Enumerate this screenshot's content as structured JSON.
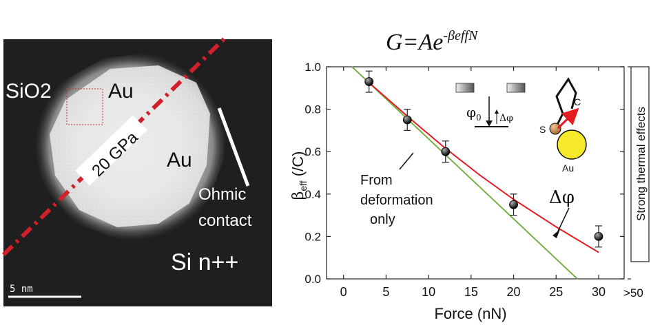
{
  "micrograph": {
    "labels": {
      "sio2": "SiO",
      "sio2_sub": "2",
      "au_top": "Au",
      "au_right": "Au",
      "pressure": "20 GPa",
      "ohmic_1": "Ohmic",
      "ohmic_2": "contact",
      "si": "Si n++"
    },
    "scale_bar_label": "5  nm",
    "colors": {
      "dash_line": "#d2202a",
      "background": "#1e1e1e",
      "box": "#c0392b"
    }
  },
  "formula": {
    "lhs": "G=Ae",
    "exponent": "-βeffN"
  },
  "chart_data": {
    "type": "scatter",
    "xlabel": "Force (nN)",
    "ylabel_main": "β",
    "ylabel_sub": "eff",
    "ylabel_unit": " (/C)",
    "xlim": [
      -2,
      33
    ],
    "ylim": [
      0,
      1.0
    ],
    "xticks": [
      0,
      5,
      10,
      15,
      20,
      25,
      30
    ],
    "yticks": [
      0.0,
      0.2,
      0.4,
      0.6,
      0.8,
      1.0
    ],
    "ytick_labels": [
      "0.0",
      "0.2",
      "0.4",
      "0.6",
      "0.8",
      "1.0"
    ],
    "points": [
      {
        "x": 3,
        "y": 0.93,
        "err": 0.05
      },
      {
        "x": 7.5,
        "y": 0.75,
        "err": 0.05
      },
      {
        "x": 12,
        "y": 0.6,
        "err": 0.05
      },
      {
        "x": 20,
        "y": 0.35,
        "err": 0.05
      },
      {
        "x": 30,
        "y": 0.2,
        "err": 0.05
      }
    ],
    "lines": [
      {
        "x": [
          1,
          27.5
        ],
        "y": [
          1.0,
          0.0
        ],
        "color": "#77b043"
      },
      {
        "x": [
          3,
          8,
          12,
          16,
          20,
          25,
          30
        ],
        "y": [
          0.925,
          0.75,
          0.615,
          0.49,
          0.375,
          0.245,
          0.125
        ],
        "color": "#e41d22"
      }
    ],
    "annotations": {
      "deformation_1": "From",
      "deformation_2": "deformation",
      "deformation_3": "only",
      "delta_phi": "Δφ",
      "phi0": "φ",
      "phi0_sub": "0",
      "inset_delta_phi": "Δφ",
      "s": "S",
      "c": "C",
      "au": "Au"
    },
    "right_panel": {
      "label": "Strong thermal effects",
      "tick_label": ">50"
    }
  }
}
